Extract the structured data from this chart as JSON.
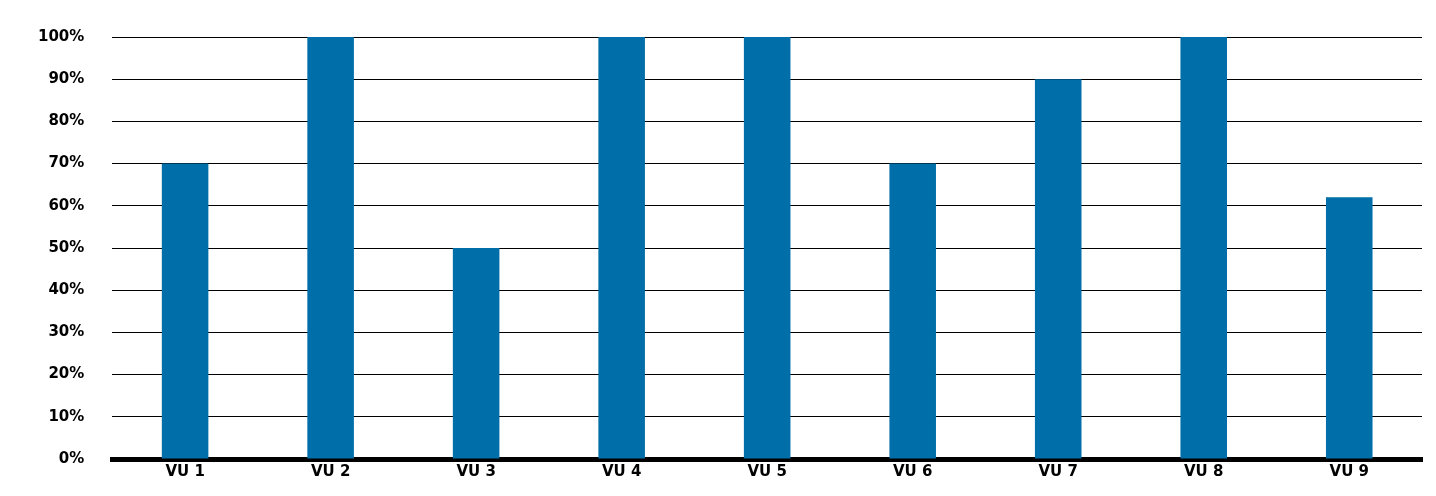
{
  "chart_data": {
    "type": "bar",
    "categories": [
      "VU 1",
      "VU 2",
      "VU 3",
      "VU 4",
      "VU 5",
      "VU 6",
      "VU 7",
      "VU 8",
      "VU 9"
    ],
    "values": [
      70,
      100,
      50,
      100,
      100,
      70,
      90,
      100,
      62
    ],
    "color": "#006ea8",
    "ylim": [
      0,
      100
    ],
    "yticks": [
      {
        "value": 0,
        "label": "0%"
      },
      {
        "value": 10,
        "label": "10%"
      },
      {
        "value": 20,
        "label": "20%"
      },
      {
        "value": 30,
        "label": "30%"
      },
      {
        "value": 40,
        "label": "40%"
      },
      {
        "value": 50,
        "label": "50%"
      },
      {
        "value": 60,
        "label": "60%"
      },
      {
        "value": 70,
        "label": "70%"
      },
      {
        "value": 80,
        "label": "80%"
      },
      {
        "value": 90,
        "label": "90%"
      },
      {
        "value": 100,
        "label": "100%"
      }
    ],
    "grid": "y",
    "legend": false
  }
}
